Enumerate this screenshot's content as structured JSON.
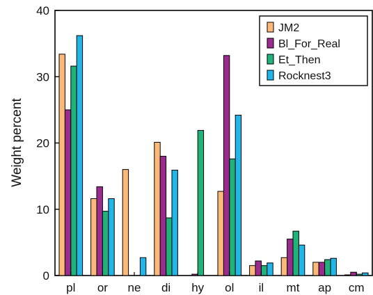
{
  "chart_data": {
    "type": "bar",
    "title": "",
    "xlabel": "",
    "ylabel": "Weight percent",
    "ylim": [
      0,
      40
    ],
    "yticks": [
      0,
      10,
      20,
      30,
      40
    ],
    "grid": false,
    "legend_position": "top-right",
    "categories": [
      "pl",
      "or",
      "ne",
      "di",
      "hy",
      "ol",
      "il",
      "mt",
      "ap",
      "cm"
    ],
    "series": [
      {
        "name": "JM2",
        "color": "#FDB97A",
        "values": [
          33.4,
          11.6,
          16.0,
          20.1,
          0.0,
          12.7,
          1.5,
          2.7,
          2.0,
          0.1
        ]
      },
      {
        "name": "Bl_For_Real",
        "color": "#9B2C8E",
        "values": [
          25.0,
          13.4,
          0.0,
          18.0,
          0.2,
          33.2,
          2.2,
          5.5,
          2.0,
          0.5
        ]
      },
      {
        "name": "Et_Then",
        "color": "#1FB27A",
        "values": [
          31.6,
          9.7,
          0.0,
          8.7,
          21.9,
          17.6,
          1.5,
          6.7,
          2.4,
          0.2
        ]
      },
      {
        "name": "Rocknest3",
        "color": "#22B6E8",
        "values": [
          36.2,
          11.6,
          2.7,
          15.9,
          0.0,
          24.2,
          1.9,
          4.6,
          2.6,
          0.4
        ]
      }
    ]
  }
}
